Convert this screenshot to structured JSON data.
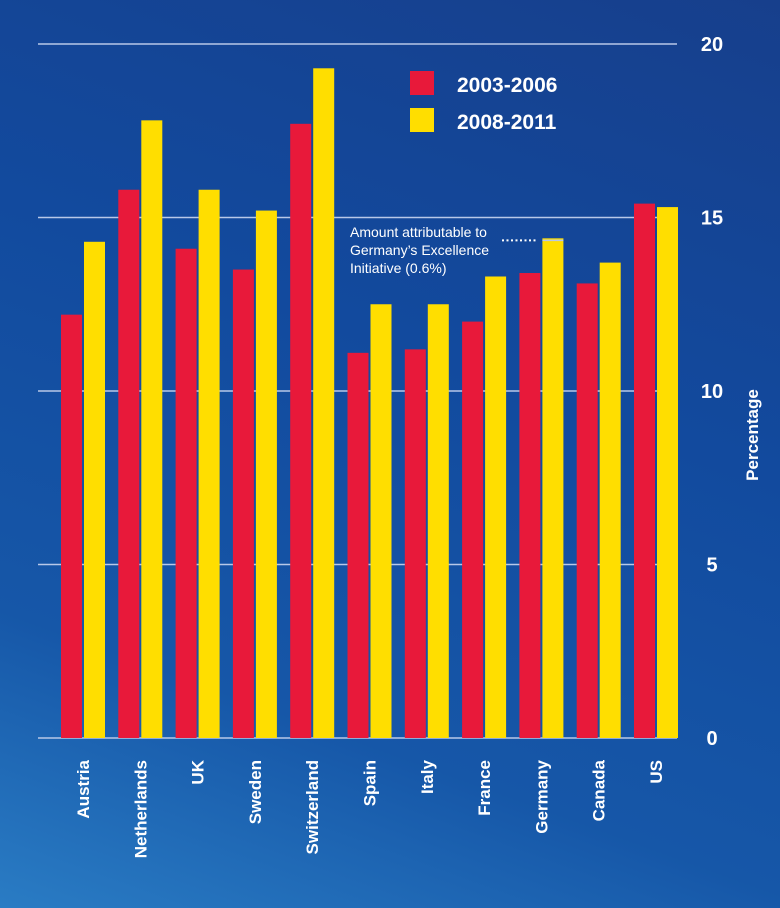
{
  "chart_data": {
    "type": "bar",
    "title": "",
    "xlabel": "",
    "ylabel": "Percentage",
    "ylim": [
      0,
      20
    ],
    "yticks": [
      0,
      5,
      10,
      15,
      20
    ],
    "grid": true,
    "legend_position": "top-right",
    "categories": [
      "Austria",
      "Netherlands",
      "UK",
      "Sweden",
      "Switzerland",
      "Spain",
      "Italy",
      "France",
      "Germany",
      "Canada",
      "US"
    ],
    "series": [
      {
        "name": "2003-2006",
        "color": "#e8193a",
        "values": [
          12.2,
          15.8,
          14.1,
          13.5,
          17.7,
          11.1,
          11.2,
          12.0,
          13.4,
          13.1,
          15.4
        ]
      },
      {
        "name": "2008-2011",
        "color": "#ffde00",
        "values": [
          14.3,
          17.8,
          15.8,
          15.2,
          19.3,
          12.5,
          12.5,
          13.3,
          14.4,
          13.7,
          15.3
        ]
      }
    ],
    "annotation": {
      "lines": [
        "Amount attributable to",
        "Germany’s Excellence",
        "Initiative (0.6%)"
      ],
      "category": "Germany",
      "series": "2008-2011",
      "amount": 0.6
    }
  },
  "colors": {
    "gridline": "#b8c8e8",
    "text": "#ffffff"
  }
}
